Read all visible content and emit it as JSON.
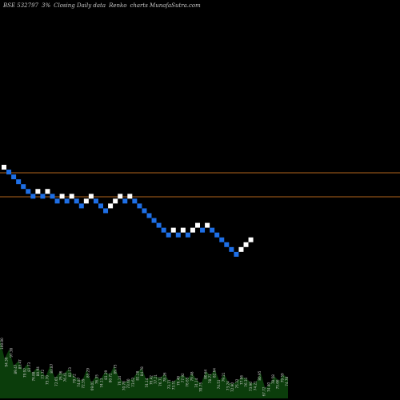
{
  "header": {
    "symbol": "BSE 532797",
    "box_size": "3%",
    "description": "Closing Daily data",
    "chart_type": "Renko",
    "source": "charts MunafaSutra.com"
  },
  "colors": {
    "background": "#000000",
    "up_brick": "#ffffff",
    "down_brick": "#1e6fe6",
    "level_line": "#b0651c",
    "volume_fill": "#0b3d0b",
    "label": "#c8c8c8"
  },
  "chart_data": {
    "type": "renko",
    "bricks": [
      "up",
      "down",
      "down",
      "down",
      "down",
      "down",
      "down",
      "up",
      "down",
      "up",
      "down",
      "down",
      "up",
      "down",
      "up",
      "down",
      "down",
      "up",
      "up",
      "down",
      "down",
      "down",
      "up",
      "up",
      "up",
      "down",
      "up",
      "down",
      "down",
      "down",
      "down",
      "down",
      "down",
      "down",
      "down",
      "up",
      "down",
      "up",
      "down",
      "up",
      "up",
      "down",
      "up",
      "down",
      "down",
      "down",
      "down",
      "down",
      "down",
      "up",
      "up",
      "up"
    ],
    "level_lines": 2,
    "volume_labels": [
      "100.00",
      "94.36",
      "97.38",
      "89.47",
      "85.47",
      "79.92",
      "81.73",
      "76.88",
      "80.94",
      "77.72",
      "75.70",
      "83.87",
      "72.65",
      "76.36",
      "76.41",
      "82.13",
      "79.72",
      "74.87",
      "72.59",
      "85.29",
      "69.01",
      "76.35",
      "74.13",
      "81.29",
      "80.72",
      "89.75",
      "76.14",
      "70.78",
      "73.60",
      "73.62",
      "81.28",
      "84.78",
      "74.14",
      "76.42",
      "77.21",
      "76.71",
      "78.26",
      "73.71",
      "73.51",
      "76.40",
      "77.92",
      "76.65",
      "79.48",
      "74.14",
      "70.75",
      "80.64",
      "78.71",
      "82.64",
      "74.51",
      "79.21",
      "73.24",
      "72.90",
      "75.32",
      "77.96",
      "76.31",
      "73.90",
      "74.21",
      "80.95",
      "67.72",
      "74.40",
      "78.58",
      "75.66",
      "79.59",
      "74.78"
    ],
    "volume": [
      0.82,
      0.55,
      0.68,
      0.45,
      0.52,
      0.4,
      0.48,
      0.35,
      0.42,
      0.38,
      0.3,
      0.46,
      0.28,
      0.36,
      0.34,
      0.41,
      0.32,
      0.27,
      0.25,
      0.4,
      0.22,
      0.31,
      0.26,
      0.37,
      0.33,
      0.45,
      0.29,
      0.22,
      0.25,
      0.27,
      0.36,
      0.42,
      0.26,
      0.3,
      0.31,
      0.28,
      0.34,
      0.24,
      0.23,
      0.29,
      0.33,
      0.27,
      0.35,
      0.26,
      0.2,
      0.38,
      0.32,
      0.4,
      0.24,
      0.34,
      0.22,
      0.2,
      0.25,
      0.3,
      0.27,
      0.21,
      0.22,
      0.36,
      0.14,
      0.2,
      0.31,
      0.24,
      0.33,
      0.28
    ]
  }
}
